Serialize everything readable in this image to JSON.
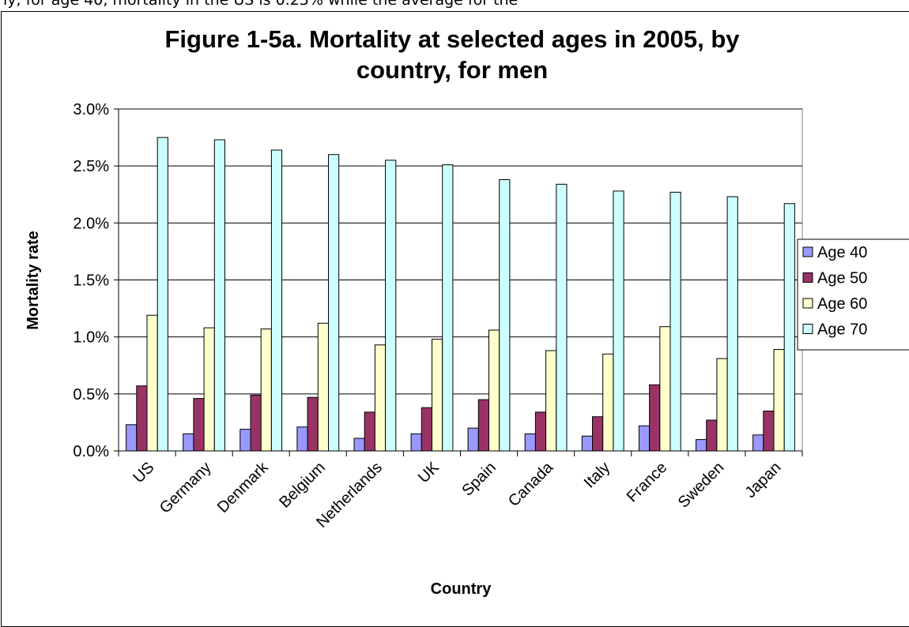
{
  "top_text_fragment": "ly, for age 40, mortality in the US is 0.23% while the average for the",
  "chart_data": {
    "type": "bar",
    "title": "Figure 1-5a.  Mortality at selected ages in 2005, by country, for men",
    "title_lines": [
      "Figure 1-5a.  Mortality at selected ages in 2005, by",
      "country, for men"
    ],
    "xlabel": "Country",
    "ylabel": "Mortality rate",
    "ylim": [
      0,
      0.03
    ],
    "yticks": [
      "0.0%",
      "0.5%",
      "1.0%",
      "1.5%",
      "2.0%",
      "2.5%",
      "3.0%"
    ],
    "grid": true,
    "legend_position": "right",
    "categories": [
      "US",
      "Germany",
      "Denmark",
      "Belgium",
      "Netherlands",
      "UK",
      "Spain",
      "Canada",
      "Italy",
      "France",
      "Sweden",
      "Japan"
    ],
    "series": [
      {
        "name": "Age 40",
        "color": "#9999ff",
        "values": [
          0.0023,
          0.0015,
          0.0019,
          0.0021,
          0.0011,
          0.0015,
          0.002,
          0.0015,
          0.0013,
          0.0022,
          0.001,
          0.0014
        ]
      },
      {
        "name": "Age 50",
        "color": "#993366",
        "values": [
          0.0057,
          0.0046,
          0.0049,
          0.0047,
          0.0034,
          0.0038,
          0.0045,
          0.0034,
          0.003,
          0.0058,
          0.0027,
          0.0035
        ]
      },
      {
        "name": "Age 60",
        "color": "#ffffcc",
        "values": [
          0.0119,
          0.0108,
          0.0107,
          0.0112,
          0.0093,
          0.0098,
          0.0106,
          0.0088,
          0.0085,
          0.0109,
          0.0081,
          0.0089
        ]
      },
      {
        "name": "Age 70",
        "color": "#ccffff",
        "values": [
          0.0275,
          0.0273,
          0.0264,
          0.026,
          0.0255,
          0.0251,
          0.0238,
          0.0234,
          0.0228,
          0.0227,
          0.0223,
          0.0217
        ]
      }
    ]
  }
}
